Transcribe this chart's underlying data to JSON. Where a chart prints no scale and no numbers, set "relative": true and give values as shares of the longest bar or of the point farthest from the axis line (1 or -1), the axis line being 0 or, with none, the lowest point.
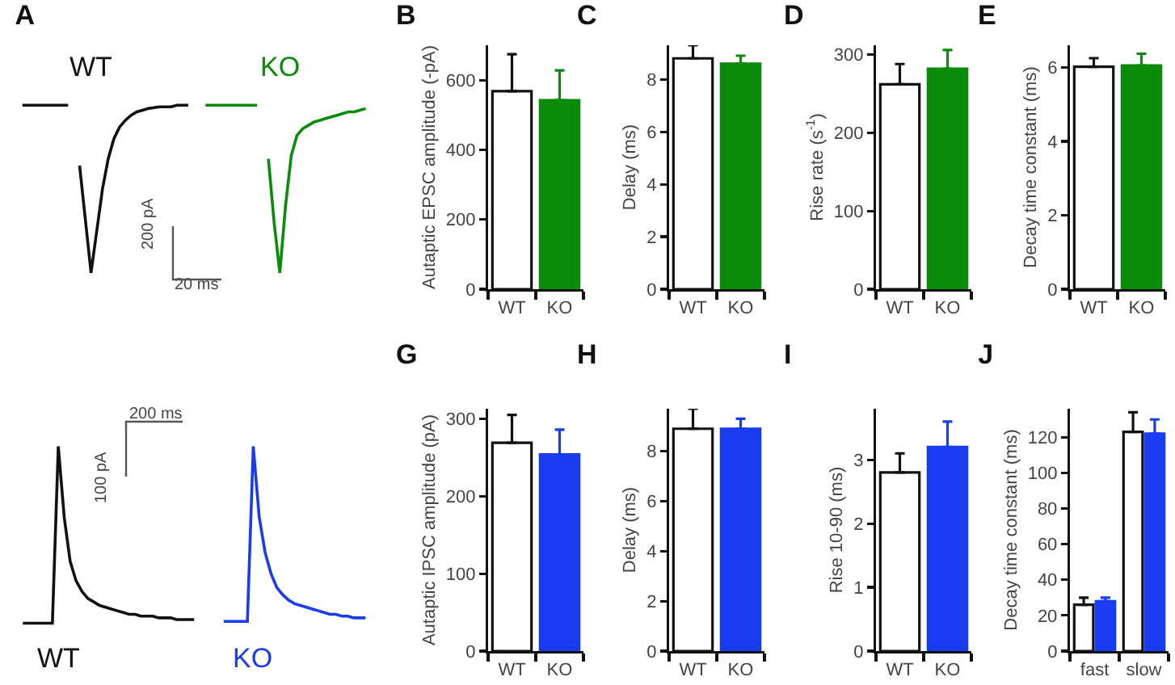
{
  "chart_data": [
    {
      "type": "line",
      "title": "A",
      "relative": true,
      "annotations": [
        "200 pA",
        "20 ms"
      ],
      "categories": [
        null,
        null,
        null,
        null,
        null,
        null,
        null,
        null,
        null,
        null,
        null,
        null,
        null,
        null,
        null,
        null,
        null,
        null,
        null,
        null,
        null,
        null,
        null,
        null,
        null,
        null,
        null,
        null,
        null,
        null,
        null,
        null,
        null,
        null,
        null,
        null,
        null,
        null,
        null,
        null,
        null,
        null,
        null,
        null,
        null,
        null,
        null,
        null,
        null,
        null,
        null,
        null,
        null,
        null,
        null,
        null,
        null,
        null,
        null,
        null,
        null,
        null,
        null
      ],
      "series": [
        {
          "color": "#111111",
          "values": [
            null,
            null,
            1,
            1,
            1,
            1,
            1,
            1,
            1,
            1,
            1,
            null,
            null,
            null,
            null,
            null,
            null,
            null,
            null,
            null,
            null,
            null,
            null,
            null,
            null,
            null,
            null,
            null,
            null,
            null,
            null,
            null,
            null,
            null,
            null,
            null,
            null,
            null,
            null,
            null,
            null,
            null,
            null,
            null,
            null,
            null,
            null,
            null,
            null,
            null,
            null,
            null,
            null,
            null,
            null,
            null,
            null,
            null,
            null,
            null,
            null,
            null,
            null
          ]
        },
        {
          "name": "WT",
          "color": "#111111",
          "values": [
            null,
            null,
            null,
            null,
            null,
            null,
            null,
            null,
            null,
            null,
            null,
            null,
            0.64,
            0.32,
            0,
            0.25,
            0.5,
            0.68,
            0.8,
            0.87,
            0.91,
            0.94,
            0.96,
            0.97,
            0.98,
            0.985,
            0.99,
            0.99,
            0.99,
            1,
            1,
            1,
            null,
            null,
            null,
            null,
            null,
            null,
            null,
            null,
            null,
            null,
            null,
            null,
            null,
            null,
            null,
            null,
            null,
            null,
            null,
            null,
            null,
            null,
            null,
            null,
            null,
            null,
            null,
            null,
            null,
            null,
            null
          ]
        },
        {
          "color": "#0a8c0a",
          "values": [
            null,
            null,
            null,
            null,
            null,
            null,
            null,
            null,
            null,
            null,
            null,
            null,
            null,
            null,
            null,
            null,
            null,
            null,
            null,
            null,
            null,
            null,
            null,
            null,
            null,
            null,
            null,
            null,
            null,
            null,
            null,
            null,
            null,
            null,
            1,
            1,
            1,
            1,
            1,
            1,
            1,
            1,
            1,
            1,
            null,
            null,
            null,
            null,
            null,
            null,
            null,
            null,
            null,
            null,
            null,
            null,
            null,
            null,
            null,
            null,
            null,
            null,
            null
          ]
        },
        {
          "name": "KO",
          "color": "#0a8c0a",
          "values": [
            null,
            null,
            null,
            null,
            null,
            null,
            null,
            null,
            null,
            null,
            null,
            null,
            null,
            null,
            null,
            null,
            null,
            null,
            null,
            null,
            null,
            null,
            null,
            null,
            null,
            null,
            null,
            null,
            null,
            null,
            null,
            null,
            null,
            null,
            null,
            null,
            null,
            null,
            null,
            null,
            null,
            null,
            null,
            null,
            null,
            0.68,
            0.3,
            0,
            0.4,
            0.7,
            0.82,
            0.86,
            0.88,
            0.9,
            0.91,
            0.92,
            0.93,
            0.94,
            0.95,
            0.96,
            0.96,
            0.97,
            0.98
          ]
        }
      ]
    },
    {
      "type": "bar",
      "title": "B",
      "ylabel": "Autaptic EPSC amplitude (-pA)",
      "categories": [
        "WT",
        "KO"
      ],
      "values": [
        568,
        542
      ],
      "colors": [
        "#ffffff",
        "#0a8c0a"
      ],
      "errors": [
        [
          568,
          674
        ],
        [
          542,
          628
        ]
      ],
      "ylim": [
        0,
        700
      ],
      "yticks": [
        0,
        200,
        400,
        600
      ]
    },
    {
      "type": "bar",
      "title": "C",
      "ylabel": "Delay (ms)",
      "categories": [
        "WT",
        "KO"
      ],
      "values": [
        8.8,
        8.6
      ],
      "colors": [
        "#ffffff",
        "#0a8c0a"
      ],
      "errors": [
        [
          8.8,
          9.3
        ],
        [
          8.6,
          8.9
        ]
      ],
      "ylim": [
        0,
        9.3
      ],
      "yticks": [
        0,
        2,
        4,
        6,
        8
      ]
    },
    {
      "type": "bar",
      "title": "D",
      "ylabel": "Rise rate (s$^{-1}$)",
      "categories": [
        "WT",
        "KO"
      ],
      "values": [
        262,
        282
      ],
      "colors": [
        "#ffffff",
        "#0a8c0a"
      ],
      "errors": [
        [
          262,
          288
        ],
        [
          282,
          306
        ]
      ],
      "ylim": [
        0,
        312
      ],
      "yticks": [
        0,
        100,
        200,
        300
      ]
    },
    {
      "type": "bar",
      "title": "E",
      "ylabel": "Decay time constant (ms)",
      "categories": [
        "WT",
        "KO"
      ],
      "values": [
        6.02,
        6.05
      ],
      "colors": [
        "#ffffff",
        "#0a8c0a"
      ],
      "errors": [
        [
          6.02,
          6.25
        ],
        [
          6.05,
          6.37
        ]
      ],
      "ylim": [
        0,
        6.6
      ],
      "yticks": [
        0,
        2,
        4,
        6
      ]
    },
    {
      "type": "line",
      "relative": true,
      "annotations": [
        "100 pA",
        "200 ms"
      ],
      "categories": [
        null,
        null,
        null,
        null,
        null,
        null,
        null,
        null,
        null,
        null,
        null,
        null,
        null,
        null,
        null,
        null,
        null,
        null,
        null,
        null,
        null,
        null,
        null,
        null,
        null,
        null,
        null,
        null,
        null,
        null,
        null,
        null,
        null,
        null,
        null,
        null,
        null,
        null,
        null,
        null,
        null,
        null,
        null,
        null,
        null,
        null,
        null,
        null,
        null,
        null,
        null,
        null,
        null,
        null,
        null,
        null,
        null,
        null,
        null,
        null,
        null
      ],
      "series": [
        {
          "name": "WT",
          "color": "#111111",
          "values": [
            null,
            null,
            0,
            0,
            0,
            0,
            0,
            0,
            1,
            0.6,
            0.35,
            0.24,
            0.18,
            0.14,
            0.12,
            0.1,
            0.09,
            0.08,
            0.07,
            0.06,
            0.05,
            0.05,
            0.04,
            0.04,
            0.04,
            0.03,
            0.03,
            0.03,
            0.02,
            0.02,
            0.02,
            0.02,
            null,
            null,
            null,
            null,
            null,
            null,
            null,
            null,
            null,
            null,
            null,
            null,
            null,
            null,
            null,
            null,
            null,
            null,
            null,
            null,
            null,
            null,
            null,
            null,
            null,
            null,
            null,
            null,
            null
          ]
        },
        {
          "name": "KO",
          "color": "#1a3cf0",
          "values": [
            null,
            null,
            null,
            null,
            null,
            null,
            null,
            null,
            null,
            null,
            null,
            null,
            null,
            null,
            null,
            null,
            null,
            null,
            null,
            null,
            null,
            null,
            null,
            null,
            null,
            null,
            null,
            null,
            null,
            null,
            null,
            null,
            null,
            null,
            null,
            null,
            0.01,
            0.01,
            0.01,
            0.01,
            0.01,
            1,
            0.6,
            0.4,
            0.28,
            0.2,
            0.16,
            0.13,
            0.11,
            0.1,
            0.09,
            0.08,
            0.07,
            0.06,
            0.05,
            0.05,
            0.04,
            0.04,
            0.03,
            0.03,
            0.03
          ]
        }
      ]
    },
    {
      "type": "bar",
      "title": "G",
      "ylabel": "Autaptic IPSC amplitude (pA)",
      "categories": [
        "WT",
        "KO"
      ],
      "values": [
        269,
        254
      ],
      "colors": [
        "#ffffff",
        "#1a3cf0"
      ],
      "errors": [
        [
          269,
          305
        ],
        [
          254,
          286
        ]
      ],
      "ylim": [
        0,
        313
      ],
      "yticks": [
        0,
        100,
        200,
        300
      ]
    },
    {
      "type": "bar",
      "title": "H",
      "ylabel": "Delay (ms)",
      "categories": [
        "WT",
        "KO"
      ],
      "values": [
        8.9,
        8.9
      ],
      "colors": [
        "#ffffff",
        "#1a3cf0"
      ],
      "errors": [
        [
          8.9,
          9.7
        ],
        [
          8.9,
          9.3
        ]
      ],
      "ylim": [
        0,
        9.7
      ],
      "yticks": [
        0,
        2,
        4,
        6,
        8
      ]
    },
    {
      "type": "bar",
      "title": "I",
      "ylabel": "Rise 10-90 (ms)",
      "categories": [
        "WT",
        "KO"
      ],
      "values": [
        2.8,
        3.2
      ],
      "colors": [
        "#ffffff",
        "#1a3cf0"
      ],
      "errors": [
        [
          2.8,
          3.1
        ],
        [
          3.2,
          3.6
        ]
      ],
      "ylim": [
        0,
        3.8
      ],
      "yticks": [
        0,
        1,
        2,
        3
      ]
    },
    {
      "type": "bar",
      "title": "J",
      "ylabel": "Decay time constant (ms)",
      "categories": [
        "fast",
        "slow"
      ],
      "ylim": [
        0,
        136
      ],
      "yticks": [
        0,
        20,
        40,
        60,
        80,
        100,
        120
      ],
      "series": [
        {
          "color": "#ffffff",
          "values": [
            26,
            123
          ],
          "errors": [
            [
              26,
              30
            ],
            [
              123,
              134
            ]
          ]
        },
        {
          "color": "#1a3cf0",
          "values": [
            28,
            122
          ],
          "errors": [
            [
              28,
              30
            ],
            [
              122,
              130
            ]
          ]
        }
      ]
    }
  ]
}
